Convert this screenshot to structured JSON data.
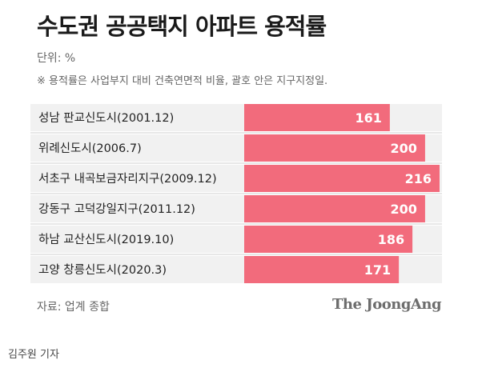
{
  "title": "수도권 공공택지 아파트 용적률",
  "unit": "단위: %",
  "note": "※ 용적률은 사업부지 대비 건축연면적 비율, 괄호 안은 지구지정일.",
  "source": "자료: 업계 종합",
  "brand": "The JoongAng",
  "byline": "김주원 기자",
  "colors": {
    "bar": "#f26b7c",
    "row_bg": "#f1f1f1",
    "divider": "#cfcfcf",
    "value_text": "#ffffff"
  },
  "chart_data": {
    "type": "bar",
    "orientation": "horizontal",
    "categories": [
      "성남 판교신도시(2001.12)",
      "위례신도시(2006.7)",
      "서초구 내곡보금자리지구(2009.12)",
      "강동구 고덕강일지구(2011.12)",
      "하남 교산신도시(2019.10)",
      "고양 창릉신도시(2020.3)"
    ],
    "values": [
      161,
      200,
      216,
      200,
      186,
      171
    ],
    "unit": "%",
    "grid": false,
    "legend": "none"
  }
}
